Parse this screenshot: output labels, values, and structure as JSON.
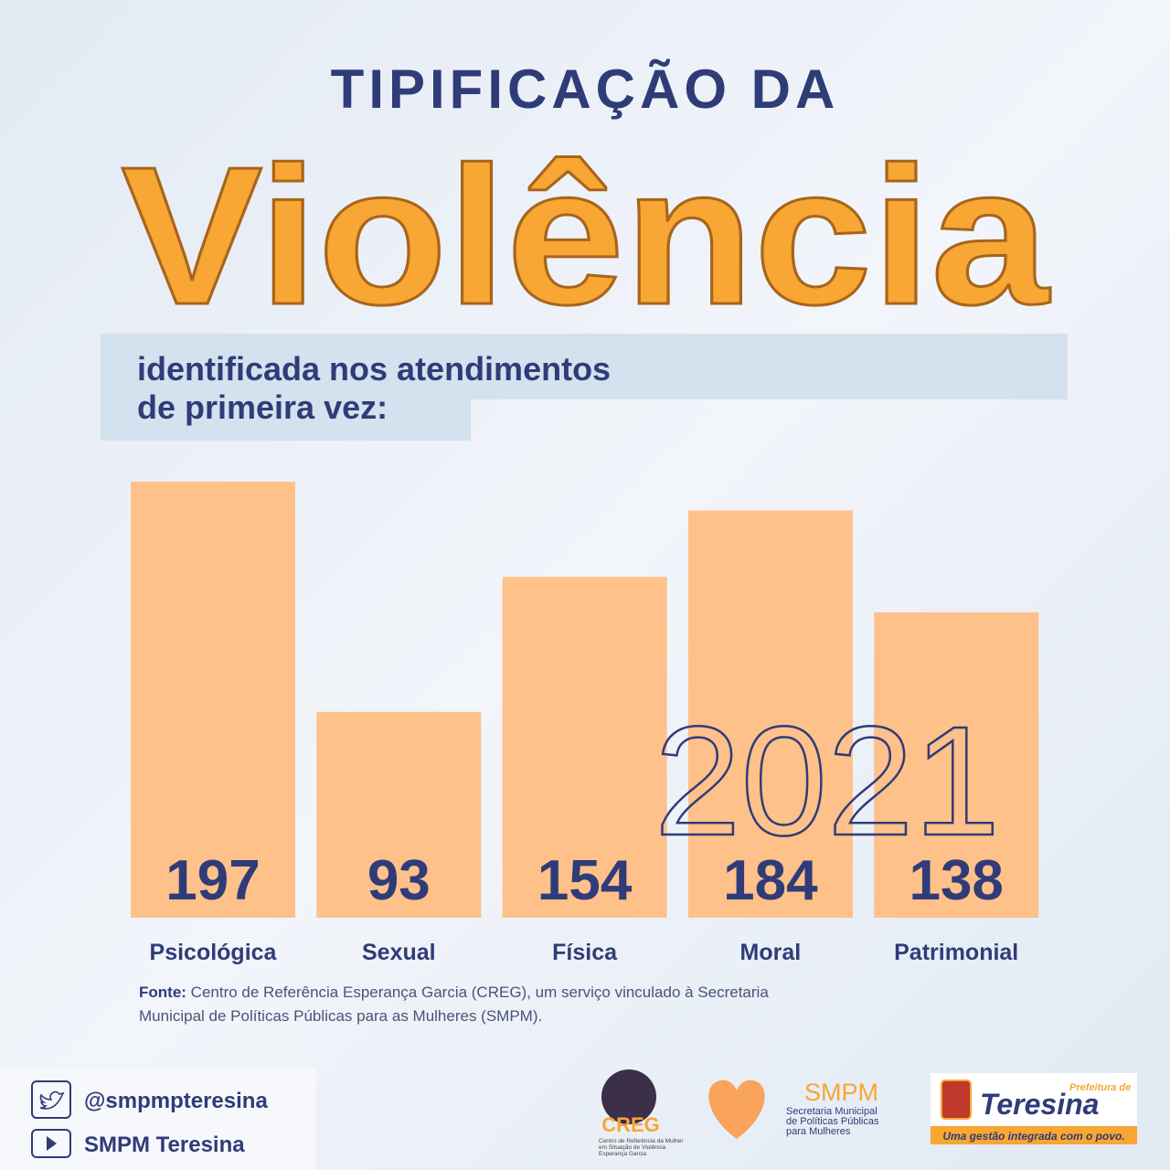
{
  "chart_data": {
    "type": "bar",
    "title": "TIPIFICAÇÃO DA",
    "title_highlight": "Violência",
    "subtitle": [
      "identificada nos atendimentos",
      "de primeira vez:"
    ],
    "year_label": "2021",
    "categories": [
      "Psicológica",
      "Sexual",
      "Física",
      "Moral",
      "Patrimonial"
    ],
    "values": [
      197,
      93,
      154,
      184,
      138
    ],
    "color": "#ffc18a",
    "source": {
      "label": "Fonte:",
      "lines": [
        "Centro de Referência Esperança Garcia (CREG), um serviço vinculado à Secretaria",
        "Municipal de Políticas Públicas para as Mulheres (SMPM)."
      ]
    }
  },
  "footer": {
    "twitter": "@smpmpteresina",
    "youtube": "SMPM Teresina",
    "creg": {
      "name": "CREG",
      "description": [
        "Centro de Referência da Mulher",
        "em Situação de Violência",
        "Esperança Garcia"
      ]
    },
    "smpm": {
      "name": "SMPM",
      "description": [
        "Secretaria Municipal",
        "de Políticas Públicas",
        "para Mulheres"
      ]
    },
    "prefeitura": {
      "prefix": "Prefeitura de",
      "name": "Teresina",
      "slogan": "Uma gestão integrada com o povo."
    }
  }
}
